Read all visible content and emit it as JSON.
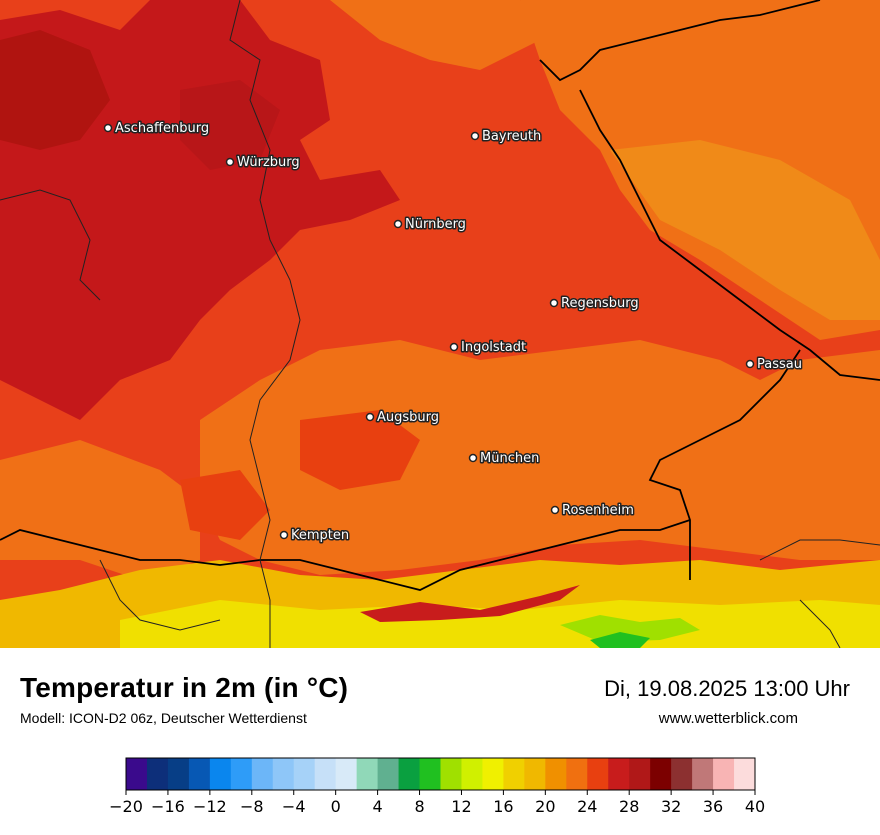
{
  "title": "Temperatur in 2m (in °C)",
  "subtitle": "Modell: ICON-D2 06z, Deutscher Wetterdienst",
  "datetime": "Di, 19.08.2025 13:00 Uhr",
  "website": "www.wetterblick.com",
  "cities": [
    {
      "name": "Aschaffenburg"
    },
    {
      "name": "Würzburg"
    },
    {
      "name": "Bayreuth"
    },
    {
      "name": "Nürnberg"
    },
    {
      "name": "Regensburg"
    },
    {
      "name": "Ingolstadt"
    },
    {
      "name": "Passau"
    },
    {
      "name": "Augsburg"
    },
    {
      "name": "München"
    },
    {
      "name": "Rosenheim"
    },
    {
      "name": "Kempten"
    }
  ],
  "legend": {
    "unit": "°C",
    "min": -20,
    "max": 40,
    "step": 2,
    "ticks": [
      "−20",
      "−16",
      "−12",
      "−8",
      "−4",
      "0",
      "4",
      "8",
      "12",
      "16",
      "20",
      "24",
      "28",
      "32",
      "36",
      "40"
    ],
    "colors": [
      "#3a0a8c",
      "#0d2f7a",
      "#073e86",
      "#0758b4",
      "#0a86ee",
      "#2e9cf8",
      "#6cb6f8",
      "#8ec6f8",
      "#a6d2f8",
      "#c6e0f8",
      "#d8eaf8",
      "#90d8b8",
      "#60b090",
      "#0aa040",
      "#20c020",
      "#a0e000",
      "#d0f000",
      "#f0f000",
      "#f0d000",
      "#f0b800",
      "#f09000",
      "#f07010",
      "#e84010",
      "#c81c1c",
      "#b01818",
      "#7c0000",
      "#8c3030",
      "#c07878",
      "#f8b4b4",
      "#fcdcdc"
    ]
  }
}
